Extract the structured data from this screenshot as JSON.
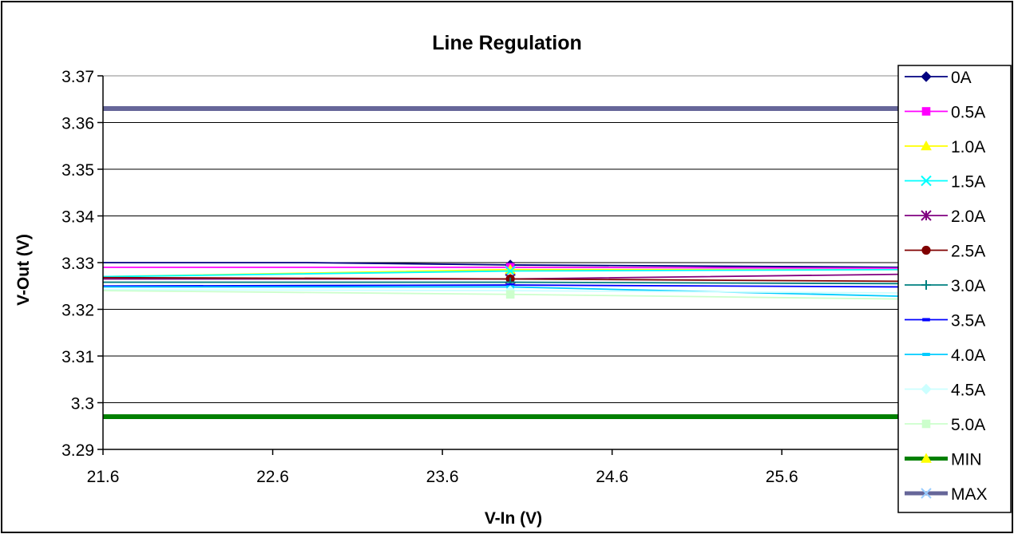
{
  "chart_data": {
    "type": "line",
    "title": "Line Regulation",
    "xlabel": "V-In (V)",
    "ylabel": "V-Out (V)",
    "xlim": [
      21.6,
      26.3
    ],
    "ylim": [
      3.29,
      3.37
    ],
    "xticks": [
      21.6,
      22.6,
      23.6,
      24.6,
      25.6
    ],
    "xtick_labels": [
      "21.6",
      "22.6",
      "23.6",
      "24.6",
      "25.6"
    ],
    "yticks": [
      3.29,
      3.3,
      3.31,
      3.32,
      3.33,
      3.34,
      3.35,
      3.36,
      3.37
    ],
    "ytick_labels": [
      "3.29",
      "3.3",
      "3.31",
      "3.32",
      "3.33",
      "3.34",
      "3.35",
      "3.36",
      "3.37"
    ],
    "grid": "horizontal",
    "legend_position": "right",
    "series": [
      {
        "name": "0A",
        "color": "#000080",
        "marker": "diamond",
        "x": [
          21.6,
          22.8,
          24.0,
          26.3
        ],
        "y": [
          3.33,
          3.33,
          3.3295,
          3.329
        ]
      },
      {
        "name": "0.5A",
        "color": "#ff00ff",
        "marker": "square",
        "x": [
          21.6,
          24.0,
          26.3
        ],
        "y": [
          3.329,
          3.329,
          3.3288
        ]
      },
      {
        "name": "1.0A",
        "color": "#ffff00",
        "marker": "triangle",
        "x": [
          21.6,
          24.0,
          26.3
        ],
        "y": [
          3.327,
          3.3285,
          3.3285
        ]
      },
      {
        "name": "1.5A",
        "color": "#00ffff",
        "marker": "x",
        "x": [
          21.6,
          24.0,
          26.3
        ],
        "y": [
          3.327,
          3.3282,
          3.3285
        ]
      },
      {
        "name": "2.0A",
        "color": "#800080",
        "marker": "star",
        "x": [
          21.6,
          24.0,
          26.3
        ],
        "y": [
          3.3265,
          3.3265,
          3.3275
        ]
      },
      {
        "name": "2.5A",
        "color": "#800000",
        "marker": "circle",
        "x": [
          21.6,
          24.0,
          26.3
        ],
        "y": [
          3.3268,
          3.3265,
          3.326
        ]
      },
      {
        "name": "3.0A",
        "color": "#008080",
        "marker": "plus",
        "x": [
          21.6,
          24.0,
          26.3
        ],
        "y": [
          3.3258,
          3.3258,
          3.3255
        ]
      },
      {
        "name": "3.5A",
        "color": "#0000ff",
        "marker": "dash",
        "x": [
          21.6,
          24.0,
          26.3
        ],
        "y": [
          3.325,
          3.3252,
          3.3248
        ]
      },
      {
        "name": "4.0A",
        "color": "#00ccff",
        "marker": "dash",
        "x": [
          21.6,
          24.0,
          26.3
        ],
        "y": [
          3.3248,
          3.3248,
          3.3228
        ]
      },
      {
        "name": "4.5A",
        "color": "#ccffff",
        "marker": "diamond",
        "x": [
          21.6,
          24.0,
          26.3
        ],
        "y": [
          3.3242,
          3.324,
          3.3235
        ]
      },
      {
        "name": "5.0A",
        "color": "#ccffcc",
        "marker": "square",
        "x": [
          21.6,
          24.0,
          26.3
        ],
        "y": [
          3.324,
          3.3232,
          3.3222
        ]
      },
      {
        "name": "MIN",
        "color": "#008000",
        "marker": "triangle",
        "x": [
          21.6,
          26.3
        ],
        "y": [
          3.297,
          3.297
        ]
      },
      {
        "name": "MAX",
        "color": "#666699",
        "marker": "x",
        "x": [
          21.6,
          26.3
        ],
        "y": [
          3.363,
          3.363
        ]
      }
    ]
  }
}
